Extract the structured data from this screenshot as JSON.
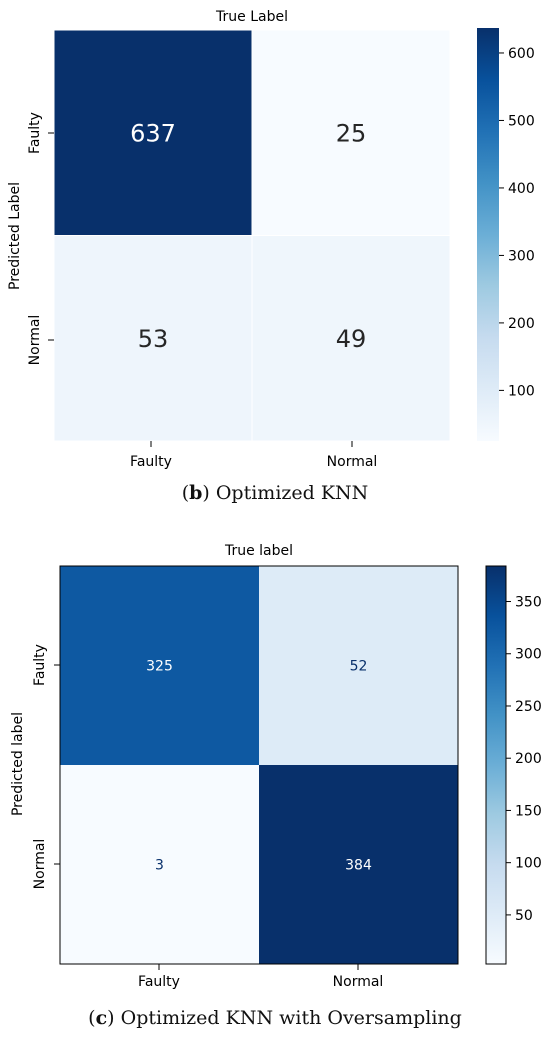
{
  "chart_data": [
    {
      "type": "heatmap",
      "title": "True Label",
      "xlabel": "",
      "ylabel": "Predicted Label",
      "x_categories": [
        "Faulty",
        "Normal"
      ],
      "y_categories": [
        "Faulty",
        "Normal"
      ],
      "values": [
        [
          637,
          25
        ],
        [
          53,
          49
        ]
      ],
      "colorbar": {
        "ticks": [
          100,
          200,
          300,
          400,
          500,
          600
        ],
        "min": 25,
        "max": 637
      },
      "colormap": "Blues",
      "caption": {
        "label": "b",
        "text": "Optimized KNN"
      }
    },
    {
      "type": "heatmap",
      "title": "True label",
      "xlabel": "",
      "ylabel": "Predicted label",
      "x_categories": [
        "Faulty",
        "Normal"
      ],
      "y_categories": [
        "Faulty",
        "Normal"
      ],
      "values": [
        [
          325,
          52
        ],
        [
          3,
          384
        ]
      ],
      "colorbar": {
        "ticks": [
          50,
          100,
          150,
          200,
          250,
          300,
          350
        ],
        "min": 3,
        "max": 384
      },
      "colormap": "Blues",
      "caption": {
        "label": "c",
        "text": "Optimized KNN with Oversampling"
      }
    }
  ]
}
